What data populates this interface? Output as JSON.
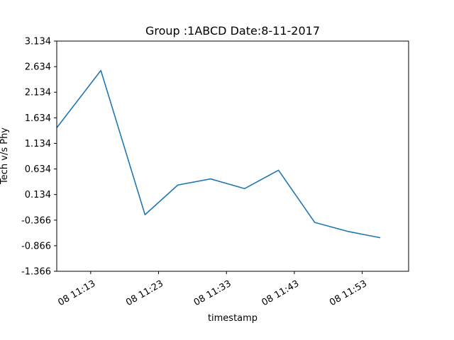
{
  "chart_data": {
    "type": "line",
    "title": "Group :1ABCD Date:8-11-2017",
    "xlabel": "timestamp",
    "ylabel": "Tech v/s Phy",
    "xlim": [
      "08 11:08",
      "09 11:59:50"
    ],
    "ylim": [
      -1.366,
      3.134
    ],
    "yticks": [
      -1.366,
      -0.866,
      -0.366,
      0.134,
      0.634,
      1.134,
      1.634,
      2.134,
      2.634,
      3.134
    ],
    "ytick_labels": [
      "-1.366",
      "-0.866",
      "-0.366",
      "0.134",
      "0.634",
      "1.134",
      "1.634",
      "2.134",
      "2.634",
      "3.134"
    ],
    "xticks": [
      "08 11:13",
      "08 11:23",
      "08 11:33",
      "08 11:43",
      "08 11:53"
    ],
    "grid": false,
    "legend": "none",
    "series": [
      {
        "color": "#1f77b4",
        "x": [
          "08 11:08",
          "08 11:14:30",
          "08 11:21",
          "08 11:25:50",
          "08 11:30:40",
          "08 11:35:40",
          "08 11:40:40",
          "08 11:46",
          "08 11:51",
          "08 11:55:40"
        ],
        "y": [
          1.44,
          2.56,
          -0.26,
          0.32,
          0.44,
          0.25,
          0.61,
          -0.41,
          -0.59,
          -0.71
        ]
      }
    ]
  }
}
